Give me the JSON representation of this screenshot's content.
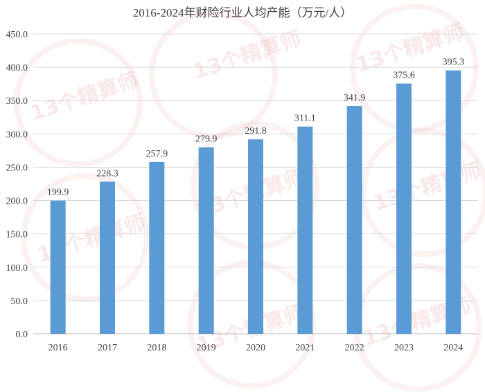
{
  "watermark": {
    "text": "13个精算师"
  },
  "chart_data": {
    "type": "bar",
    "title": "2016-2024年财险行业人均产能（万元/人）",
    "xlabel": "",
    "ylabel": "",
    "categories": [
      "2016",
      "2017",
      "2018",
      "2019",
      "2020",
      "2021",
      "2022",
      "2023",
      "2024"
    ],
    "values": [
      199.9,
      228.3,
      257.9,
      279.9,
      291.8,
      311.1,
      341.9,
      375.6,
      395.3
    ],
    "value_labels": [
      "199.9",
      "228.3",
      "257.9",
      "279.9",
      "291.8",
      "311.1",
      "341.9",
      "375.6",
      "395.3"
    ],
    "ylim": [
      0,
      450
    ],
    "yticks": [
      0,
      50,
      100,
      150,
      200,
      250,
      300,
      350,
      400,
      450
    ],
    "ytick_labels": [
      "0.0",
      "50.0",
      "100.0",
      "150.0",
      "200.0",
      "250.0",
      "300.0",
      "350.0",
      "400.0",
      "450.0"
    ],
    "grid": true,
    "legend": "none",
    "colors": {
      "bar": "#5B9BD5",
      "grid": "#D9D9D9",
      "text": "#404040"
    }
  }
}
